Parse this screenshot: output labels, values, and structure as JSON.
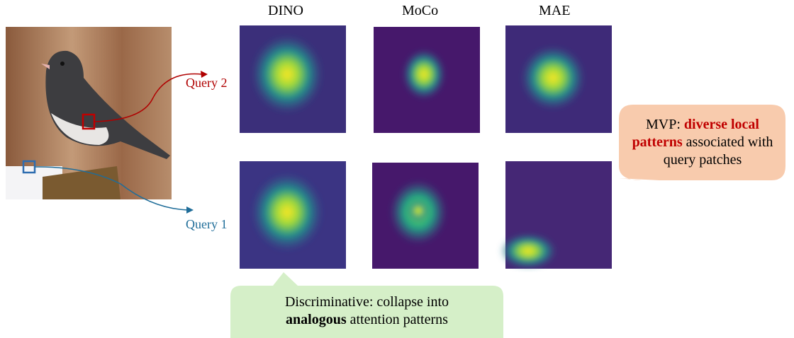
{
  "columns": [
    "DINO",
    "MoCo",
    "MAE"
  ],
  "queries": {
    "query_2": "Query 2",
    "query_1": "Query 1"
  },
  "mvp_callout": {
    "prefix": "MVP:",
    "highlight": "diverse local patterns",
    "rest": "associated with query patches"
  },
  "discriminative_callout": {
    "prefix": "Discriminative: collapse into",
    "highlight": "analogous",
    "rest": "attention patterns"
  }
}
